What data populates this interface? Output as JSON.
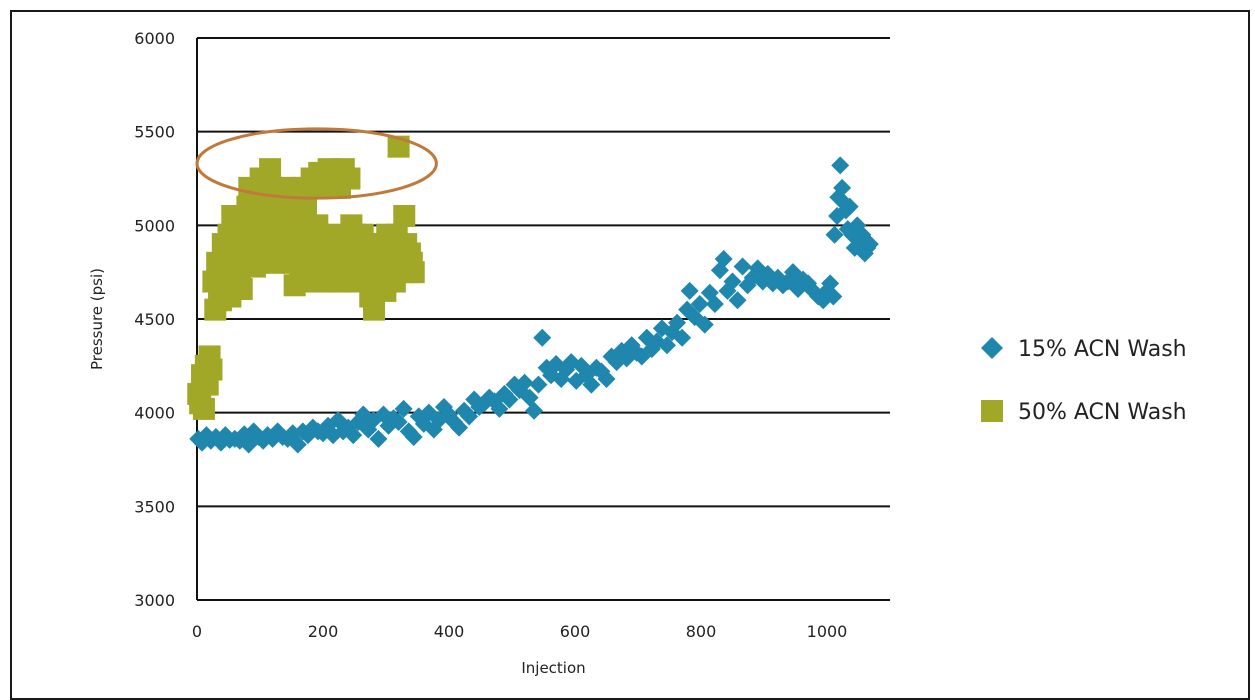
{
  "chart_data": {
    "type": "scatter",
    "xlabel": "Injection",
    "ylabel": "Pressure (psi)",
    "xlim": [
      0,
      1100
    ],
    "ylim": [
      3000,
      6000
    ],
    "xticks": [
      "0",
      "200",
      "400",
      "600",
      "800",
      "1000"
    ],
    "yticks": [
      "3000",
      "3500",
      "4000",
      "4500",
      "5000",
      "5500",
      "6000"
    ],
    "grid": "horizontal",
    "legend_position": "right",
    "annotation": {
      "shape": "ellipse",
      "color": "#c0793a",
      "center": [
        190,
        5330
      ],
      "radii_data": [
        190,
        185
      ]
    },
    "series": [
      {
        "name": "15% ACN Wash",
        "marker": "diamond",
        "color": "#1f87ad",
        "points": [
          [
            2,
            3860
          ],
          [
            8,
            3840
          ],
          [
            15,
            3880
          ],
          [
            22,
            3850
          ],
          [
            30,
            3870
          ],
          [
            38,
            3840
          ],
          [
            45,
            3880
          ],
          [
            52,
            3855
          ],
          [
            60,
            3860
          ],
          [
            68,
            3850
          ],
          [
            75,
            3885
          ],
          [
            82,
            3830
          ],
          [
            90,
            3900
          ],
          [
            98,
            3870
          ],
          [
            105,
            3850
          ],
          [
            112,
            3880
          ],
          [
            120,
            3860
          ],
          [
            128,
            3900
          ],
          [
            136,
            3870
          ],
          [
            144,
            3860
          ],
          [
            152,
            3890
          ],
          [
            160,
            3830
          ],
          [
            168,
            3900
          ],
          [
            176,
            3880
          ],
          [
            184,
            3920
          ],
          [
            192,
            3900
          ],
          [
            200,
            3890
          ],
          [
            208,
            3930
          ],
          [
            216,
            3880
          ],
          [
            224,
            3960
          ],
          [
            232,
            3900
          ],
          [
            240,
            3920
          ],
          [
            248,
            3880
          ],
          [
            256,
            3950
          ],
          [
            264,
            3990
          ],
          [
            272,
            3910
          ],
          [
            280,
            3960
          ],
          [
            288,
            3860
          ],
          [
            296,
            3990
          ],
          [
            304,
            3930
          ],
          [
            312,
            3970
          ],
          [
            320,
            3950
          ],
          [
            328,
            4020
          ],
          [
            336,
            3900
          ],
          [
            344,
            3870
          ],
          [
            352,
            3980
          ],
          [
            360,
            3940
          ],
          [
            368,
            4000
          ],
          [
            376,
            3910
          ],
          [
            384,
            3960
          ],
          [
            392,
            4030
          ],
          [
            400,
            3990
          ],
          [
            408,
            3950
          ],
          [
            416,
            3920
          ],
          [
            424,
            4010
          ],
          [
            432,
            3980
          ],
          [
            440,
            4070
          ],
          [
            448,
            4030
          ],
          [
            456,
            4050
          ],
          [
            464,
            4080
          ],
          [
            472,
            4060
          ],
          [
            480,
            4020
          ],
          [
            488,
            4100
          ],
          [
            496,
            4070
          ],
          [
            504,
            4150
          ],
          [
            512,
            4120
          ],
          [
            520,
            4160
          ],
          [
            528,
            4080
          ],
          [
            535,
            4010
          ],
          [
            542,
            4150
          ],
          [
            548,
            4400
          ],
          [
            555,
            4240
          ],
          [
            562,
            4200
          ],
          [
            570,
            4260
          ],
          [
            578,
            4180
          ],
          [
            586,
            4230
          ],
          [
            594,
            4270
          ],
          [
            602,
            4170
          ],
          [
            610,
            4250
          ],
          [
            618,
            4200
          ],
          [
            626,
            4150
          ],
          [
            634,
            4240
          ],
          [
            642,
            4220
          ],
          [
            650,
            4180
          ],
          [
            658,
            4300
          ],
          [
            666,
            4270
          ],
          [
            674,
            4330
          ],
          [
            682,
            4290
          ],
          [
            690,
            4360
          ],
          [
            698,
            4320
          ],
          [
            706,
            4300
          ],
          [
            714,
            4400
          ],
          [
            722,
            4340
          ],
          [
            730,
            4380
          ],
          [
            738,
            4450
          ],
          [
            746,
            4360
          ],
          [
            754,
            4430
          ],
          [
            762,
            4480
          ],
          [
            770,
            4400
          ],
          [
            778,
            4550
          ],
          [
            782,
            4650
          ],
          [
            790,
            4510
          ],
          [
            798,
            4580
          ],
          [
            806,
            4470
          ],
          [
            814,
            4640
          ],
          [
            822,
            4580
          ],
          [
            830,
            4760
          ],
          [
            836,
            4820
          ],
          [
            842,
            4650
          ],
          [
            850,
            4700
          ],
          [
            858,
            4600
          ],
          [
            866,
            4780
          ],
          [
            874,
            4680
          ],
          [
            882,
            4720
          ],
          [
            890,
            4770
          ],
          [
            898,
            4700
          ],
          [
            906,
            4740
          ],
          [
            914,
            4690
          ],
          [
            922,
            4720
          ],
          [
            930,
            4680
          ],
          [
            938,
            4700
          ],
          [
            946,
            4750
          ],
          [
            954,
            4660
          ],
          [
            962,
            4710
          ],
          [
            970,
            4690
          ],
          [
            978,
            4650
          ],
          [
            986,
            4620
          ],
          [
            994,
            4600
          ],
          [
            1000,
            4650
          ],
          [
            1005,
            4690
          ],
          [
            1010,
            4620
          ],
          [
            1012,
            4950
          ],
          [
            1016,
            5050
          ],
          [
            1018,
            5150
          ],
          [
            1021,
            5320
          ],
          [
            1024,
            5200
          ],
          [
            1027,
            5120
          ],
          [
            1030,
            5080
          ],
          [
            1033,
            4980
          ],
          [
            1036,
            5100
          ],
          [
            1040,
            4950
          ],
          [
            1044,
            4880
          ],
          [
            1048,
            5000
          ],
          [
            1052,
            4900
          ],
          [
            1056,
            4950
          ],
          [
            1060,
            4850
          ],
          [
            1064,
            4880
          ],
          [
            1068,
            4900
          ]
        ]
      },
      {
        "name": "50% ACN Wash",
        "marker": "square",
        "color": "#a1a827",
        "points": [
          [
            2,
            4100
          ],
          [
            5,
            4050
          ],
          [
            8,
            4200
          ],
          [
            11,
            4020
          ],
          [
            14,
            4250
          ],
          [
            17,
            4150
          ],
          [
            20,
            4300
          ],
          [
            23,
            4230
          ],
          [
            26,
            4700
          ],
          [
            29,
            4550
          ],
          [
            32,
            4800
          ],
          [
            35,
            4650
          ],
          [
            38,
            4600
          ],
          [
            41,
            4900
          ],
          [
            44,
            4750
          ],
          [
            47,
            4680
          ],
          [
            50,
            4950
          ],
          [
            53,
            4620
          ],
          [
            56,
            5050
          ],
          [
            59,
            4800
          ],
          [
            62,
            4700
          ],
          [
            65,
            4900
          ],
          [
            68,
            4750
          ],
          [
            71,
            4660
          ],
          [
            74,
            5000
          ],
          [
            77,
            4820
          ],
          [
            80,
            5100
          ],
          [
            83,
            5200
          ],
          [
            86,
            4950
          ],
          [
            89,
            5150
          ],
          [
            92,
            4780
          ],
          [
            95,
            5050
          ],
          [
            98,
            4900
          ],
          [
            101,
            5250
          ],
          [
            104,
            5000
          ],
          [
            107,
            4850
          ],
          [
            110,
            5100
          ],
          [
            113,
            4950
          ],
          [
            116,
            5300
          ],
          [
            119,
            5200
          ],
          [
            122,
            4800
          ],
          [
            125,
            5050
          ],
          [
            128,
            4920
          ],
          [
            131,
            5150
          ],
          [
            134,
            5000
          ],
          [
            137,
            4870
          ],
          [
            140,
            5200
          ],
          [
            143,
            5080
          ],
          [
            146,
            4950
          ],
          [
            149,
            5180
          ],
          [
            152,
            4800
          ],
          [
            155,
            4680
          ],
          [
            158,
            5000
          ],
          [
            161,
            4900
          ],
          [
            164,
            4750
          ],
          [
            167,
            5200
          ],
          [
            170,
            4850
          ],
          [
            173,
            5100
          ],
          [
            176,
            4700
          ],
          [
            179,
            4950
          ],
          [
            182,
            5250
          ],
          [
            185,
            4900
          ],
          [
            188,
            4800
          ],
          [
            191,
            5000
          ],
          [
            194,
            5280
          ],
          [
            197,
            4750
          ],
          [
            200,
            5200
          ],
          [
            203,
            4880
          ],
          [
            206,
            4700
          ],
          [
            209,
            5300
          ],
          [
            212,
            4950
          ],
          [
            215,
            4800
          ],
          [
            218,
            5250
          ],
          [
            221,
            4850
          ],
          [
            224,
            4700
          ],
          [
            227,
            5200
          ],
          [
            230,
            4900
          ],
          [
            233,
            5300
          ],
          [
            236,
            4750
          ],
          [
            239,
            4850
          ],
          [
            242,
            5250
          ],
          [
            245,
            5000
          ],
          [
            248,
            4700
          ],
          [
            251,
            4950
          ],
          [
            254,
            4800
          ],
          [
            257,
            4900
          ],
          [
            260,
            4750
          ],
          [
            263,
            4950
          ],
          [
            266,
            4850
          ],
          [
            269,
            4700
          ],
          [
            272,
            4800
          ],
          [
            275,
            4620
          ],
          [
            278,
            4850
          ],
          [
            281,
            4550
          ],
          [
            284,
            4900
          ],
          [
            287,
            4780
          ],
          [
            290,
            4700
          ],
          [
            293,
            4900
          ],
          [
            296,
            4800
          ],
          [
            299,
            4650
          ],
          [
            302,
            4950
          ],
          [
            305,
            4850
          ],
          [
            308,
            4750
          ],
          [
            311,
            4900
          ],
          [
            314,
            4700
          ],
          [
            317,
            4950
          ],
          [
            320,
            5420
          ],
          [
            323,
            4800
          ],
          [
            326,
            4850
          ],
          [
            329,
            5050
          ],
          [
            332,
            4900
          ],
          [
            335,
            4750
          ],
          [
            338,
            4850
          ],
          [
            341,
            4800
          ],
          [
            344,
            4750
          ]
        ]
      }
    ]
  }
}
